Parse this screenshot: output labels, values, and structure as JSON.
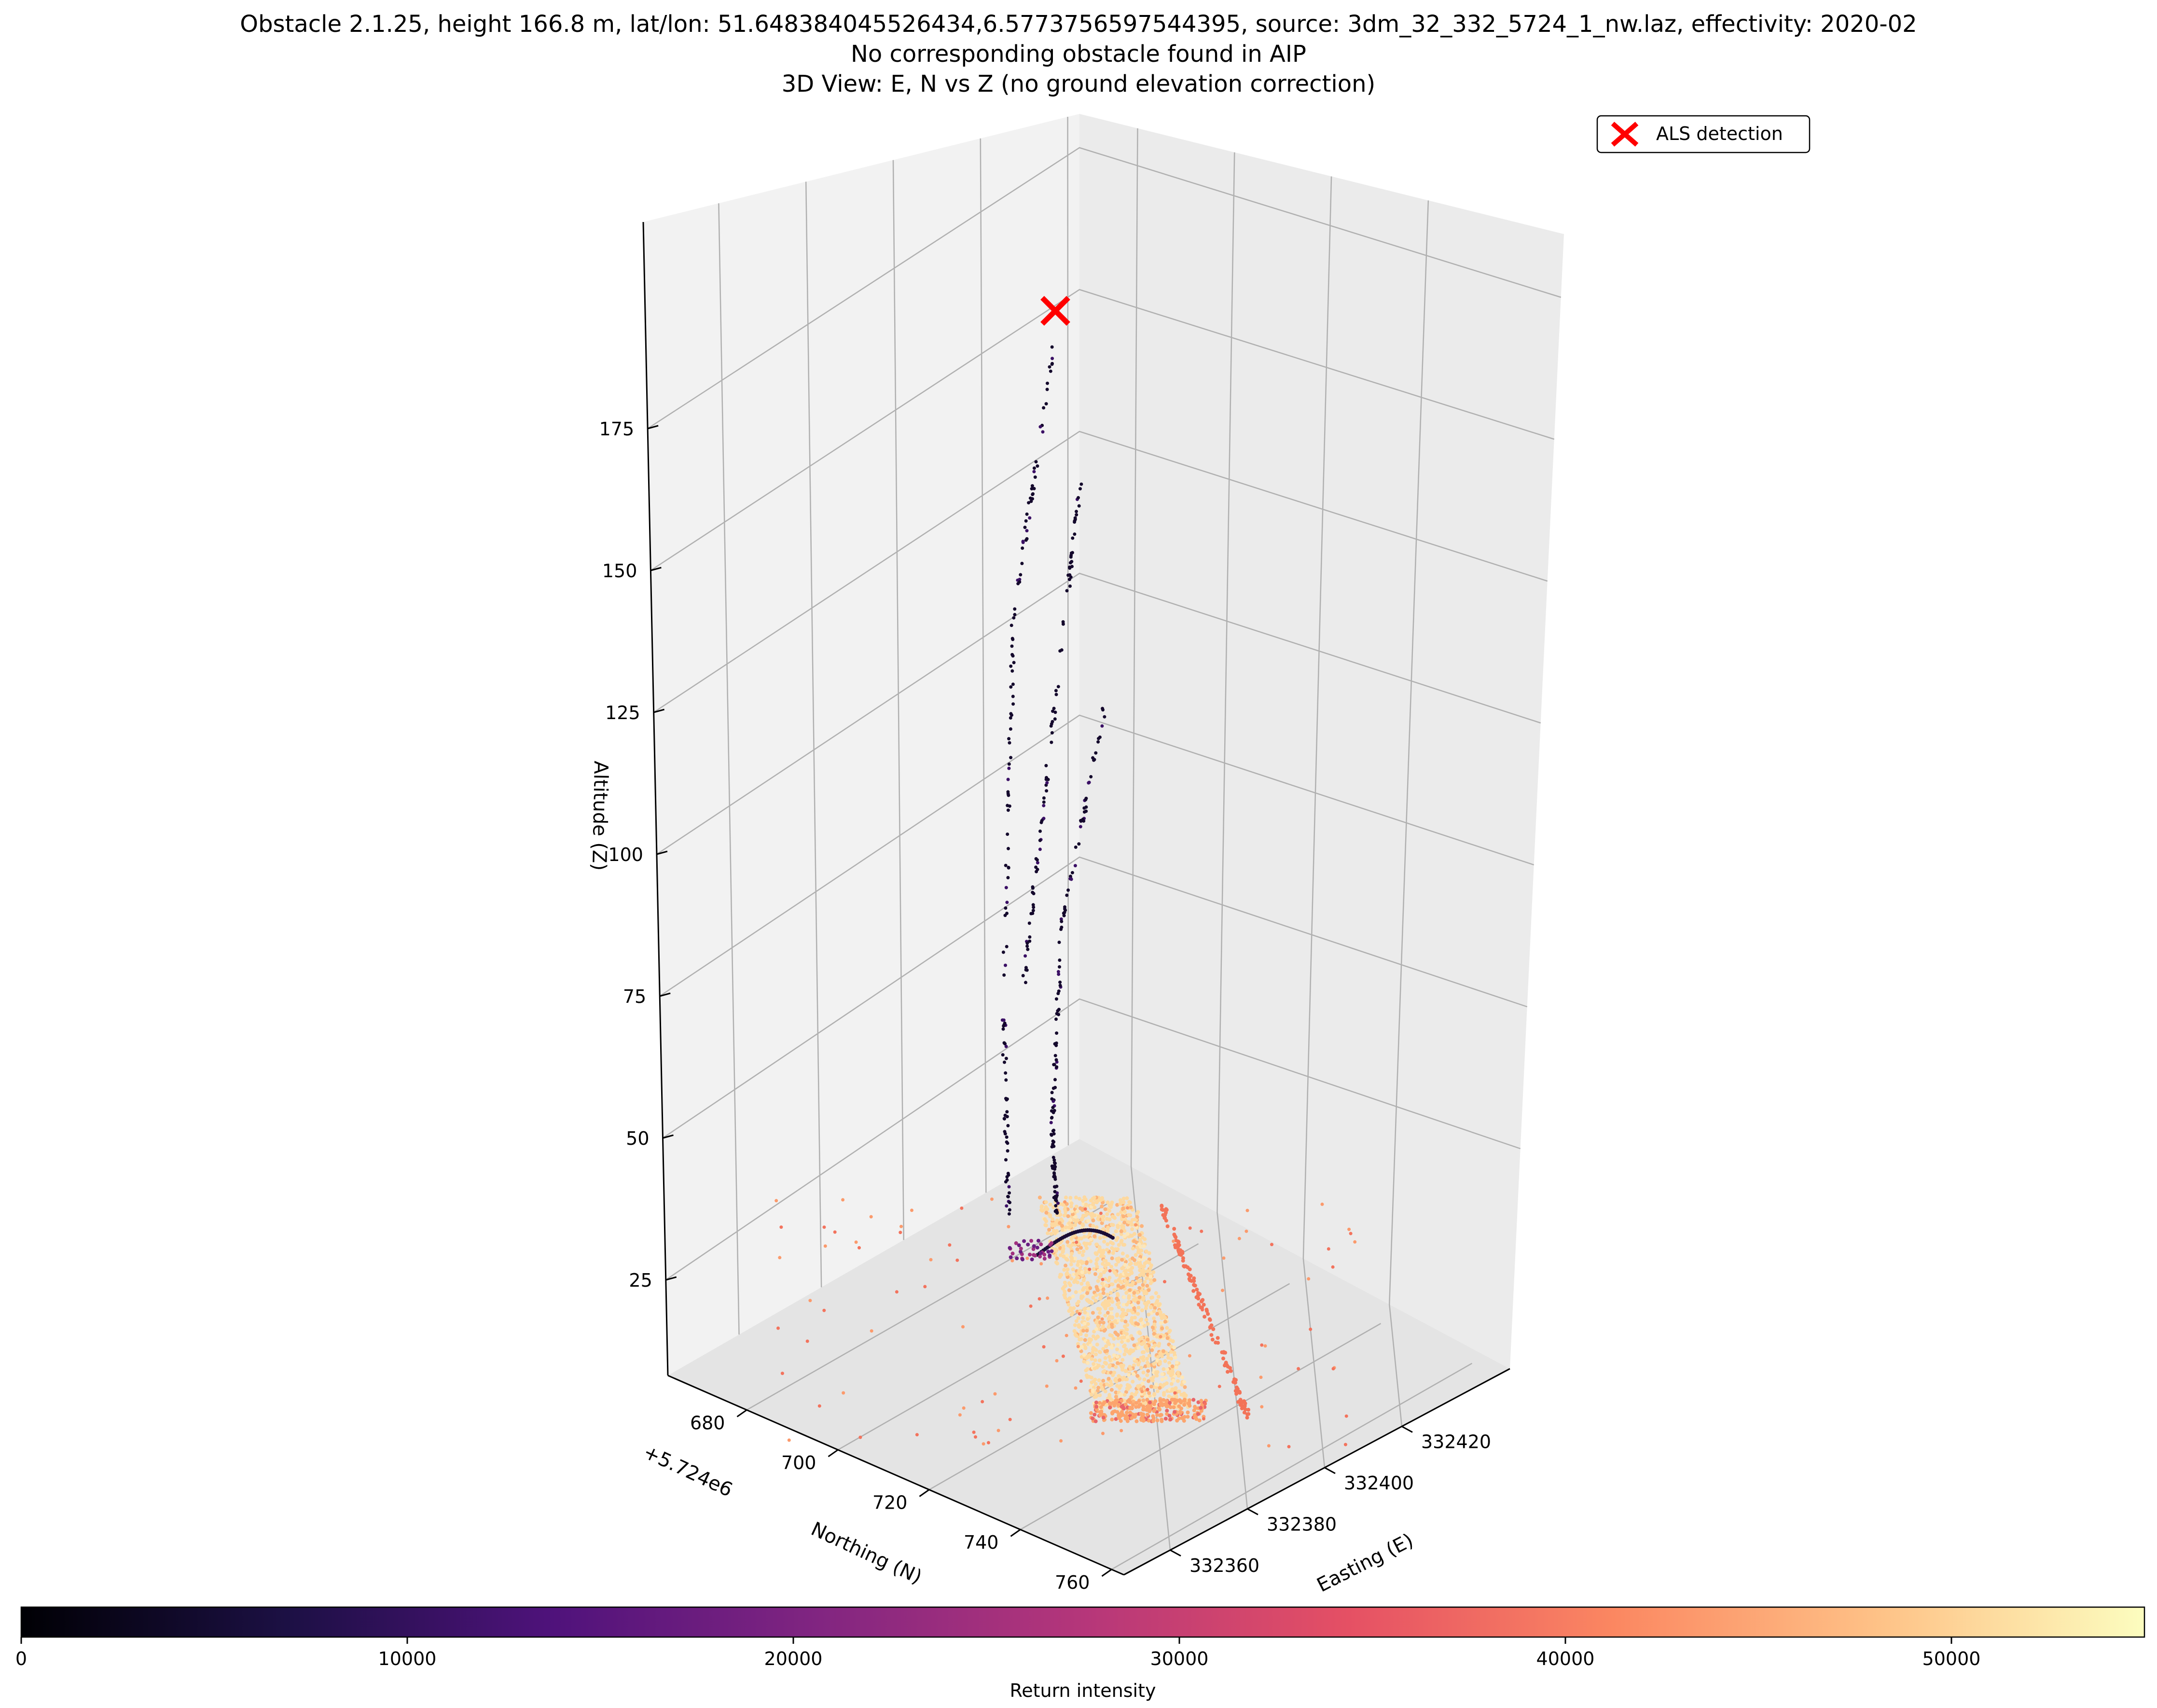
{
  "chart_data": {
    "type": "scatter",
    "title_lines": [
      "Obstacle 2.1.25, height 166.8 m, lat/lon: 51.648384045526434,6.5773756597544395, source: 3dm_32_332_5724_1_nw.laz, effectivity: 2020-02",
      "No corresponding obstacle found in AIP",
      "3D View: E, N vs Z (no ground elevation correction)"
    ],
    "axes": {
      "x": {
        "label": "Easting (E)",
        "ticks": [
          "332360",
          "332380",
          "332400",
          "332420"
        ]
      },
      "y": {
        "label": "Northing (N)",
        "offset_text": "+5.724e6",
        "ticks": [
          "680",
          "700",
          "720",
          "740",
          "760"
        ]
      },
      "z": {
        "label": "Altitude (Z)",
        "ticks": [
          "25",
          "50",
          "75",
          "100",
          "125",
          "150",
          "175"
        ]
      }
    },
    "legend": {
      "placement": "top-right",
      "entries": [
        {
          "label": "ALS detection",
          "marker": "x",
          "color": "#ff0000"
        }
      ]
    },
    "colorbar": {
      "label": "Return intensity",
      "colormap": "magma",
      "ticks": [
        "0",
        "10000",
        "20000",
        "30000",
        "40000",
        "50000"
      ],
      "range": [
        0,
        55000
      ]
    },
    "series": [
      {
        "name": "ALS detection",
        "x": 332378,
        "y": 5724690,
        "z": 186.0
      }
    ]
  }
}
